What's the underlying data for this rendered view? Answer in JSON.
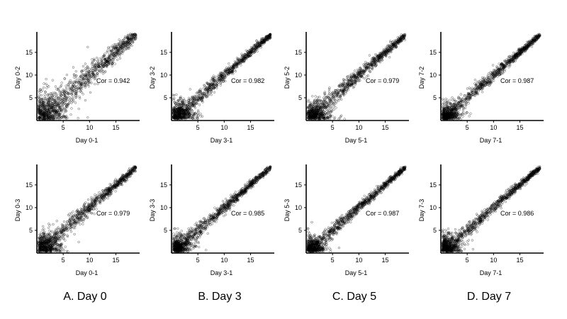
{
  "style": {
    "point_color": "#000000",
    "background": "#ffffff"
  },
  "captions": [
    "A. Day 0",
    "B. Day 3",
    "C. Day 5",
    "D. Day 7"
  ],
  "chart_data": [
    {
      "type": "scatter",
      "xlabel": "Day 0-1",
      "ylabel": "Day 0-2",
      "annotation": "Cor = 0.942",
      "correlation": 0.942,
      "xlim": [
        0,
        19.5
      ],
      "ylim": [
        0,
        19.5
      ],
      "xticks": [
        5,
        10,
        15
      ],
      "yticks": [
        5,
        10,
        15
      ],
      "spread": 1.8,
      "low_cloud": 2.6
    },
    {
      "type": "scatter",
      "xlabel": "Day 3-1",
      "ylabel": "Day 3-2",
      "annotation": "Cor = 0.982",
      "correlation": 0.982,
      "xlim": [
        0,
        19.5
      ],
      "ylim": [
        0,
        19.5
      ],
      "xticks": [
        5,
        10,
        15
      ],
      "yticks": [
        5,
        10,
        15
      ],
      "spread": 0.9,
      "low_cloud": 1.8
    },
    {
      "type": "scatter",
      "xlabel": "Day 5-1",
      "ylabel": "Day 5-2",
      "annotation": "Cor = 0.979",
      "correlation": 0.979,
      "xlim": [
        0,
        19.5
      ],
      "ylim": [
        0,
        19.5
      ],
      "xticks": [
        5,
        10,
        15
      ],
      "yticks": [
        5,
        10,
        15
      ],
      "spread": 1.0,
      "low_cloud": 2.0
    },
    {
      "type": "scatter",
      "xlabel": "Day 7-1",
      "ylabel": "Day 7-2",
      "annotation": "Cor = 0.987",
      "correlation": 0.987,
      "xlim": [
        0,
        19.5
      ],
      "ylim": [
        0,
        19.5
      ],
      "xticks": [
        5,
        10,
        15
      ],
      "yticks": [
        5,
        10,
        15
      ],
      "spread": 0.8,
      "low_cloud": 1.6
    },
    {
      "type": "scatter",
      "xlabel": "Day 0-1",
      "ylabel": "Day 0-3",
      "annotation": "Cor = 0.979",
      "correlation": 0.979,
      "xlim": [
        0,
        19.5
      ],
      "ylim": [
        0,
        19.5
      ],
      "xticks": [
        5,
        10,
        15
      ],
      "yticks": [
        5,
        10,
        15
      ],
      "spread": 1.0,
      "low_cloud": 2.0
    },
    {
      "type": "scatter",
      "xlabel": "Day 3-1",
      "ylabel": "Day 3-3",
      "annotation": "Cor = 0.985",
      "correlation": 0.985,
      "xlim": [
        0,
        19.5
      ],
      "ylim": [
        0,
        19.5
      ],
      "xticks": [
        5,
        10,
        15
      ],
      "yticks": [
        5,
        10,
        15
      ],
      "spread": 0.85,
      "low_cloud": 1.7
    },
    {
      "type": "scatter",
      "xlabel": "Day 5-1",
      "ylabel": "Day 5-3",
      "annotation": "Cor = 0.987",
      "correlation": 0.987,
      "xlim": [
        0,
        19.5
      ],
      "ylim": [
        0,
        19.5
      ],
      "xticks": [
        5,
        10,
        15
      ],
      "yticks": [
        5,
        10,
        15
      ],
      "spread": 0.8,
      "low_cloud": 1.6
    },
    {
      "type": "scatter",
      "xlabel": "Day 7-1",
      "ylabel": "Day 7-3",
      "annotation": "Cor = 0.986",
      "correlation": 0.986,
      "xlim": [
        0,
        19.5
      ],
      "ylim": [
        0,
        19.5
      ],
      "xticks": [
        5,
        10,
        15
      ],
      "yticks": [
        5,
        10,
        15
      ],
      "spread": 0.8,
      "low_cloud": 1.7
    }
  ]
}
